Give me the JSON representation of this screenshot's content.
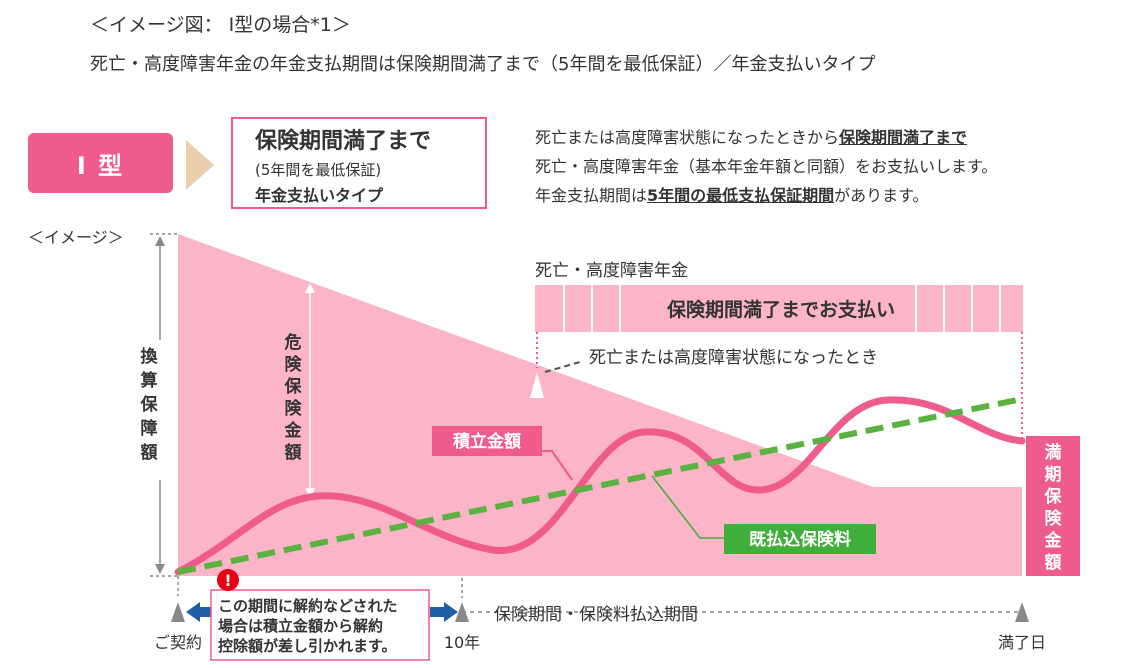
{
  "header": {
    "caption": "＜イメージ図： Ⅰ型の場合*1＞",
    "subtitle": "死亡・高度障害年金の年金支払期間は保険期間満了まで（5年間を最低保証）／年金支払いタイプ"
  },
  "type_badge": {
    "label": "Ⅰ 型"
  },
  "type_box": {
    "title": "保険期間満了まで",
    "note": "(5年間を最低保証)",
    "subtitle": "年金支払いタイプ"
  },
  "description": {
    "line1_pre": "死亡または高度障害状態になったときから",
    "line1_bold": "保険期間満了まで",
    "line2": "死亡・高度障害年金（基本年金年額と同額）をお支払いします。",
    "line3_pre": "年金支払期間は",
    "line3_bold": "5年間の最低支払保証期間",
    "line3_post": "があります。"
  },
  "diagram": {
    "image_label": "＜イメージ＞",
    "y_axis_label": "換算保障額",
    "risk_label": "危険保険金額",
    "annuity_title": "死亡・高度障害年金",
    "annuity_bar_label": "保険期間満了までお支払い",
    "death_label": "死亡または高度障害状態になったとき",
    "accumulated_label": "積立金額",
    "paid_premium_label": "既払込保険料",
    "maturity_label": "満期保険金額",
    "warning_icon": "!",
    "warning_text_1": "この期間に解約などされた",
    "warning_text_2": "場合は積立金額から解約",
    "warning_text_3": "控除額が差し引かれます。",
    "period_label": "保険期間・保険料払込期間",
    "x_start": "ご契約",
    "x_mid": "10年",
    "x_end": "満了日",
    "colors": {
      "pink_area": "#fbb4c8",
      "accent_pink": "#ef5b8a",
      "dashed_green": "#5ab240",
      "green_label": "#3fae3a",
      "arrow_blue": "#1f5fa8",
      "warning_red": "#e60012",
      "gray_marker": "#888888"
    }
  }
}
